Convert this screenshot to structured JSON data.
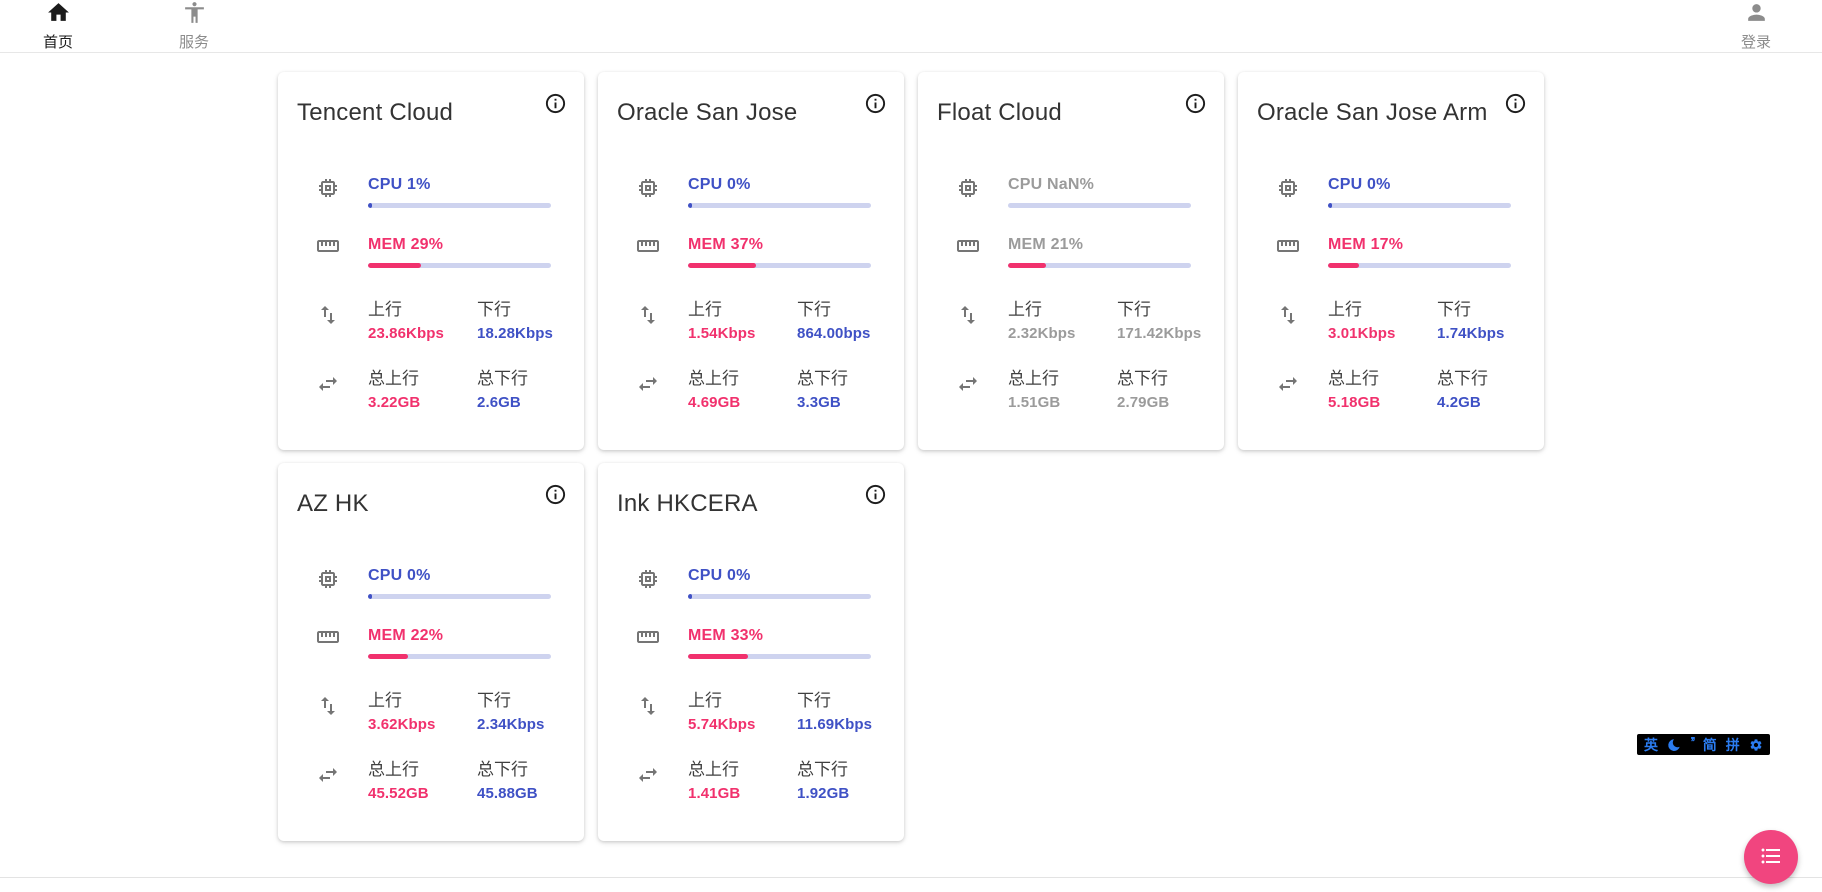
{
  "nav": {
    "home": {
      "label": "首页"
    },
    "services": {
      "label": "服务"
    },
    "login": {
      "label": "登录"
    }
  },
  "labels": {
    "up": "上行",
    "down": "下行",
    "total_up": "总上行",
    "total_down": "总下行"
  },
  "servers": [
    {
      "name": "Tencent Cloud",
      "cpu_text": "CPU 1%",
      "cpu_pct": 1,
      "mem_text": "MEM 29%",
      "mem_pct": 29,
      "offline": false,
      "up": "23.86Kbps",
      "down": "18.28Kbps",
      "total_up": "3.22GB",
      "total_down": "2.6GB"
    },
    {
      "name": "Oracle San Jose",
      "cpu_text": "CPU 0%",
      "cpu_pct": 0,
      "mem_text": "MEM 37%",
      "mem_pct": 37,
      "offline": false,
      "up": "1.54Kbps",
      "down": "864.00bps",
      "total_up": "4.69GB",
      "total_down": "3.3GB"
    },
    {
      "name": "Float Cloud",
      "cpu_text": "CPU NaN%",
      "cpu_pct": null,
      "mem_text": "MEM 21%",
      "mem_pct": 21,
      "offline": true,
      "up": "2.32Kbps",
      "down": "171.42Kbps",
      "total_up": "1.51GB",
      "total_down": "2.79GB"
    },
    {
      "name": "Oracle San Jose Arm",
      "cpu_text": "CPU 0%",
      "cpu_pct": 0,
      "mem_text": "MEM 17%",
      "mem_pct": 17,
      "offline": false,
      "up": "3.01Kbps",
      "down": "1.74Kbps",
      "total_up": "5.18GB",
      "total_down": "4.2GB"
    },
    {
      "name": "AZ HK",
      "cpu_text": "CPU 0%",
      "cpu_pct": 0,
      "mem_text": "MEM 22%",
      "mem_pct": 22,
      "offline": false,
      "up": "3.62Kbps",
      "down": "2.34Kbps",
      "total_up": "45.52GB",
      "total_down": "45.88GB"
    },
    {
      "name": "Ink HKCERA",
      "cpu_text": "CPU 0%",
      "cpu_pct": 0,
      "mem_text": "MEM 33%",
      "mem_pct": 33,
      "offline": false,
      "up": "5.74Kbps",
      "down": "11.69Kbps",
      "total_up": "1.41GB",
      "total_down": "1.92GB"
    }
  ],
  "ime": {
    "lang": "英",
    "punct": "’’",
    "simplified": "简",
    "pinyin": "拼"
  },
  "icons": {
    "nav": [
      "home-icon",
      "accessibility-icon",
      "person-icon"
    ],
    "card": [
      "info-icon",
      "cpu-chip-icon",
      "ruler-icon",
      "swap-vertical-icon",
      "swap-horizontal-icon"
    ],
    "ime": [
      "moon-icon",
      "gear-icon"
    ],
    "fab": "list-icon"
  },
  "colors": {
    "accent_blue": "#3f51c5",
    "accent_pink": "#f1316d",
    "bar_track": "#ced3ef",
    "offline_gray": "#9b9b9b",
    "fab_pink": "#f1457f",
    "ime_blue": "#2b7cf0"
  }
}
